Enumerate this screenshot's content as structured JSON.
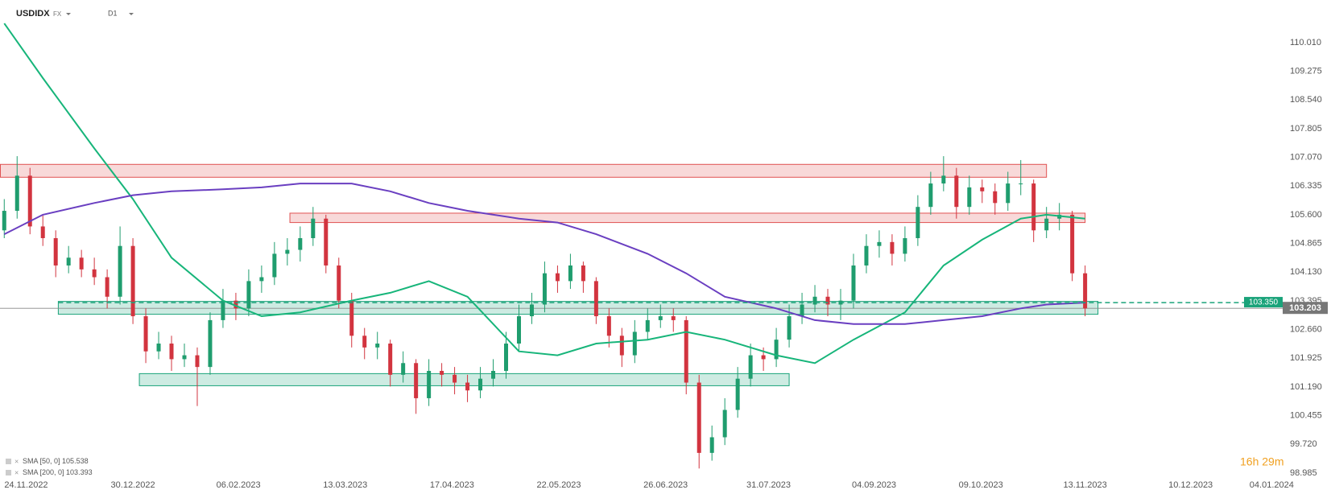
{
  "chart_data": {
    "type": "candlestick",
    "symbol": "USDIDX",
    "market": "FX",
    "timeframe": "D1",
    "up_color": "#1f9d6e",
    "down_color": "#d2343f",
    "xlim": [
      -0.33,
      99.48
    ],
    "ylim": [
      98.9,
      111.1
    ],
    "xticks": [
      {
        "value": 1.7,
        "label": "24.11.2022"
      },
      {
        "value": 10,
        "label": "30.12.2022"
      },
      {
        "value": 18.2,
        "label": "06.02.2023"
      },
      {
        "value": 26.5,
        "label": "13.03.2023"
      },
      {
        "value": 34.8,
        "label": "17.04.2023"
      },
      {
        "value": 43.1,
        "label": "22.05.2023"
      },
      {
        "value": 51.4,
        "label": "26.06.2023"
      },
      {
        "value": 59.4,
        "label": "31.07.2023"
      },
      {
        "value": 67.6,
        "label": "04.09.2023"
      },
      {
        "value": 75.9,
        "label": "09.10.2023"
      },
      {
        "value": 84,
        "label": "13.11.2023"
      },
      {
        "value": 92.2,
        "label": "10.12.2023"
      },
      {
        "value": 98.5,
        "label": "04.01.2024"
      }
    ],
    "yticks": [
      {
        "value": 110.01,
        "label": "110.010"
      },
      109.275,
      {
        "value": 108.54,
        "label": "108.540"
      },
      107.805,
      {
        "value": 107.07,
        "label": "107.070"
      },
      106.335,
      {
        "value": 105.6,
        "label": "105.600"
      },
      104.865,
      {
        "value": 104.13,
        "label": "104.130"
      },
      103.395,
      {
        "value": 102.66,
        "label": "102.660"
      },
      101.925,
      {
        "value": 101.19,
        "label": "101.190"
      },
      100.455,
      {
        "value": 99.72,
        "label": "99.720"
      },
      98.985
    ],
    "candles": [
      [
        105.2,
        106.0,
        105.0,
        105.7
      ],
      [
        105.7,
        107.1,
        105.5,
        106.6
      ],
      [
        106.6,
        106.8,
        105.1,
        105.3
      ],
      [
        105.3,
        105.6,
        104.8,
        105.0
      ],
      [
        105.0,
        105.2,
        104.0,
        104.3
      ],
      [
        104.3,
        104.8,
        104.1,
        104.5
      ],
      [
        104.5,
        104.7,
        104.0,
        104.2
      ],
      [
        104.2,
        104.5,
        103.8,
        104.0
      ],
      [
        104.0,
        104.2,
        103.2,
        103.5
      ],
      [
        103.5,
        105.3,
        103.3,
        104.8
      ],
      [
        104.8,
        105.0,
        102.8,
        103.0
      ],
      [
        103.0,
        103.2,
        101.8,
        102.1
      ],
      [
        102.1,
        102.6,
        101.9,
        102.3
      ],
      [
        102.3,
        102.5,
        101.6,
        101.9
      ],
      [
        101.9,
        102.3,
        101.7,
        102.0
      ],
      [
        102.0,
        102.2,
        100.7,
        101.7
      ],
      [
        101.7,
        103.1,
        101.5,
        102.9
      ],
      [
        102.9,
        103.7,
        102.7,
        103.4
      ],
      [
        103.4,
        103.6,
        102.9,
        103.2
      ],
      [
        103.2,
        104.2,
        103.0,
        103.9
      ],
      [
        103.9,
        104.3,
        103.6,
        104.0
      ],
      [
        104.0,
        104.9,
        103.8,
        104.6
      ],
      [
        104.6,
        105.0,
        104.3,
        104.7
      ],
      [
        104.7,
        105.3,
        104.4,
        105.0
      ],
      [
        105.0,
        105.8,
        104.8,
        105.5
      ],
      [
        105.5,
        105.6,
        104.1,
        104.3
      ],
      [
        104.3,
        104.5,
        103.2,
        103.4
      ],
      [
        103.4,
        103.6,
        102.2,
        102.5
      ],
      [
        102.5,
        102.7,
        101.9,
        102.2
      ],
      [
        102.2,
        102.6,
        101.9,
        102.3
      ],
      [
        102.3,
        102.4,
        101.2,
        101.5
      ],
      [
        101.5,
        102.1,
        101.3,
        101.8
      ],
      [
        101.8,
        101.9,
        100.5,
        100.9
      ],
      [
        100.9,
        101.9,
        100.7,
        101.6
      ],
      [
        101.6,
        101.8,
        101.2,
        101.5
      ],
      [
        101.5,
        101.7,
        101.0,
        101.3
      ],
      [
        101.3,
        101.5,
        100.8,
        101.1
      ],
      [
        101.1,
        101.7,
        100.9,
        101.4
      ],
      [
        101.4,
        101.9,
        101.2,
        101.6
      ],
      [
        101.6,
        102.6,
        101.4,
        102.3
      ],
      [
        102.3,
        103.3,
        102.1,
        103.0
      ],
      [
        103.0,
        103.6,
        102.8,
        103.3
      ],
      [
        103.3,
        104.4,
        103.1,
        104.1
      ],
      [
        104.1,
        104.3,
        103.6,
        103.9
      ],
      [
        103.9,
        104.6,
        103.7,
        104.3
      ],
      [
        104.3,
        104.4,
        103.6,
        103.9
      ],
      [
        103.9,
        104.0,
        102.8,
        103.0
      ],
      [
        103.0,
        103.2,
        102.2,
        102.5
      ],
      [
        102.5,
        102.7,
        101.7,
        102.0
      ],
      [
        102.0,
        102.9,
        101.8,
        102.6
      ],
      [
        102.6,
        103.2,
        102.4,
        102.9
      ],
      [
        102.9,
        103.3,
        102.7,
        103.0
      ],
      [
        103.0,
        103.2,
        102.6,
        102.9
      ],
      [
        102.9,
        103.0,
        101.0,
        101.3
      ],
      [
        101.3,
        101.5,
        99.1,
        99.5
      ],
      [
        99.5,
        100.2,
        99.3,
        99.9
      ],
      [
        99.9,
        100.9,
        99.7,
        100.6
      ],
      [
        100.6,
        101.7,
        100.4,
        101.4
      ],
      [
        101.4,
        102.3,
        101.2,
        102.0
      ],
      [
        102.0,
        102.2,
        101.6,
        101.9
      ],
      [
        101.9,
        102.7,
        101.7,
        102.4
      ],
      [
        102.4,
        103.3,
        102.2,
        103.0
      ],
      [
        103.0,
        103.6,
        102.8,
        103.3
      ],
      [
        103.3,
        103.8,
        103.1,
        103.5
      ],
      [
        103.5,
        103.7,
        103.0,
        103.3
      ],
      [
        103.3,
        103.7,
        102.9,
        103.4
      ],
      [
        103.4,
        104.6,
        103.2,
        104.3
      ],
      [
        104.3,
        105.1,
        104.1,
        104.8
      ],
      [
        104.8,
        105.2,
        104.5,
        104.9
      ],
      [
        104.9,
        105.1,
        104.3,
        104.6
      ],
      [
        104.6,
        105.3,
        104.4,
        105.0
      ],
      [
        105.0,
        106.1,
        104.8,
        105.8
      ],
      [
        105.8,
        106.7,
        105.6,
        106.4
      ],
      [
        106.4,
        107.1,
        106.2,
        106.6
      ],
      [
        106.6,
        106.8,
        105.5,
        105.8
      ],
      [
        105.8,
        106.6,
        105.6,
        106.3
      ],
      [
        106.3,
        106.5,
        105.9,
        106.2
      ],
      [
        106.2,
        106.4,
        105.6,
        105.9
      ],
      [
        105.9,
        106.7,
        105.7,
        106.4
      ],
      [
        106.4,
        107.0,
        106.1,
        106.4
      ],
      [
        106.4,
        106.5,
        104.9,
        105.2
      ],
      [
        105.2,
        105.8,
        105.0,
        105.5
      ],
      [
        105.5,
        105.9,
        105.2,
        105.6
      ],
      [
        105.6,
        105.7,
        103.9,
        104.1
      ],
      [
        104.1,
        104.3,
        103.0,
        103.2
      ]
    ],
    "series": [
      {
        "name": "SMA [50, 0]",
        "last": 105.538,
        "color": "#17b57a",
        "x": [
          0,
          3,
          7,
          10,
          13,
          17,
          20,
          23,
          27,
          30,
          33,
          36,
          40,
          43,
          46,
          50,
          53,
          56,
          60,
          63,
          66,
          70,
          73,
          76,
          79,
          81,
          84
        ],
        "values": [
          110.5,
          109.1,
          107.3,
          106.0,
          104.5,
          103.4,
          103.0,
          103.1,
          103.4,
          103.6,
          103.9,
          103.5,
          102.1,
          102.0,
          102.3,
          102.4,
          102.6,
          102.4,
          102.0,
          101.8,
          102.4,
          103.1,
          104.3,
          104.96,
          105.5,
          105.6,
          105.5
        ]
      },
      {
        "name": "SMA [200, 0]",
        "last": 103.393,
        "color": "#6a3fc1",
        "x": [
          0,
          3,
          7,
          10,
          13,
          17,
          20,
          23,
          27,
          30,
          33,
          36,
          40,
          43,
          46,
          50,
          53,
          56,
          60,
          63,
          66,
          70,
          73,
          76,
          79,
          81,
          84
        ],
        "values": [
          105.1,
          105.6,
          105.9,
          106.1,
          106.2,
          106.25,
          106.3,
          106.4,
          106.4,
          106.2,
          105.9,
          105.7,
          105.5,
          105.4,
          105.1,
          104.6,
          104.1,
          103.5,
          103.2,
          102.9,
          102.8,
          102.8,
          102.9,
          103.0,
          103.2,
          103.3,
          103.35
        ]
      }
    ],
    "zones": [
      {
        "x": [
          -0.3,
          81
        ],
        "y": [
          106.56,
          106.89
        ],
        "color": "#e05252"
      },
      {
        "x": [
          22.2,
          84
        ],
        "y": [
          105.4,
          105.64
        ],
        "color": "#e05252"
      },
      {
        "x": [
          4.2,
          85
        ],
        "y": [
          103.05,
          103.38
        ],
        "color": "#1aa37a"
      },
      {
        "x": [
          10.5,
          61
        ],
        "y": [
          101.22,
          101.53
        ],
        "color": "#1aa37a"
      }
    ],
    "level": {
      "value": 103.35,
      "label": "103.350",
      "color": "#1aa37a"
    },
    "last_price": 103.203,
    "timer": "16h 29m"
  }
}
